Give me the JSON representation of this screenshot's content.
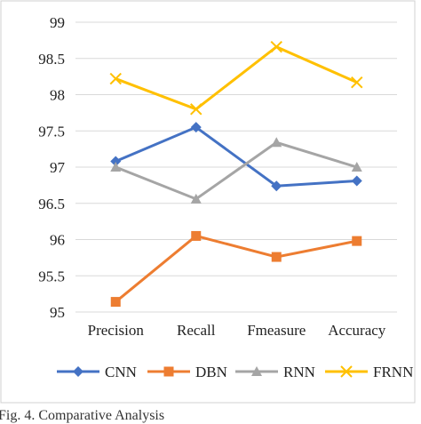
{
  "caption": "Fig. 4.  Comparative Analysis",
  "chart_data": {
    "type": "line",
    "categories": [
      "Precision",
      "Recall",
      "Fmeasure",
      "Accuracy"
    ],
    "ylim": [
      95,
      99
    ],
    "yticks": [
      "95",
      "95.5",
      "96",
      "96.5",
      "97",
      "97.5",
      "98",
      "98.5",
      "99"
    ],
    "grid": true,
    "legend_position": "bottom",
    "series": [
      {
        "name": "CNN",
        "values": [
          97.08,
          97.55,
          96.74,
          96.81
        ],
        "color": "#4472c4",
        "marker": "diamond"
      },
      {
        "name": "DBN",
        "values": [
          95.14,
          96.05,
          95.76,
          95.98
        ],
        "color": "#ed7d31",
        "marker": "square"
      },
      {
        "name": "RNN",
        "values": [
          97.0,
          96.56,
          97.34,
          97.0
        ],
        "color": "#a5a5a5",
        "marker": "triangle"
      },
      {
        "name": "FRNN",
        "values": [
          98.22,
          97.8,
          98.66,
          98.17
        ],
        "color": "#ffc000",
        "marker": "x"
      }
    ]
  }
}
